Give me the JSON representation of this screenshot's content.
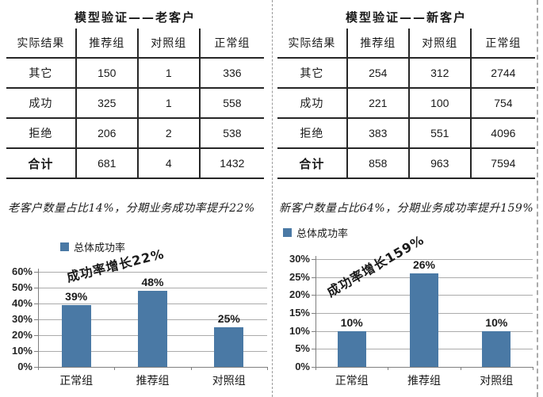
{
  "colors": {
    "accent": "#4a79a5",
    "gridline": "#ababab",
    "axis": "#7f7f7f",
    "divider": "#9a9a9a",
    "table_border": "#262626"
  },
  "left_panel": {
    "table": {
      "title": "模型验证——老客户",
      "columns": [
        "实际结果",
        "推荐组",
        "对照组",
        "正常组"
      ],
      "rows": [
        [
          "其它",
          "150",
          "1",
          "336"
        ],
        [
          "成功",
          "325",
          "1",
          "558"
        ],
        [
          "拒绝",
          "206",
          "2",
          "538"
        ],
        [
          "合计",
          "681",
          "4",
          "1432"
        ]
      ]
    },
    "caption": "老客户数量占比14%，分期业务成功率提升22%"
  },
  "right_panel": {
    "table": {
      "title": "模型验证——新客户",
      "columns": [
        "实际结果",
        "推荐组",
        "对照组",
        "正常组"
      ],
      "rows": [
        [
          "其它",
          "254",
          "312",
          "2744"
        ],
        [
          "成功",
          "221",
          "100",
          "754"
        ],
        [
          "拒绝",
          "383",
          "551",
          "4096"
        ],
        [
          "合计",
          "858",
          "963",
          "7594"
        ]
      ]
    },
    "caption": "新客户数量占比64%，分期业务成功率提升159%"
  },
  "chart_data": [
    {
      "type": "bar",
      "title": "",
      "legend": "总体成功率",
      "legend_position": "top-left",
      "categories": [
        "正常组",
        "推荐组",
        "对照组"
      ],
      "values": [
        39,
        48,
        25
      ],
      "value_labels": [
        "39%",
        "48%",
        "25%"
      ],
      "annotation": "成功率增长22%",
      "xlabel": "",
      "ylabel": "",
      "ylim": [
        0,
        60
      ],
      "ytick_step": 10,
      "ytick_labels": [
        "0%",
        "10%",
        "20%",
        "30%",
        "40%",
        "50%",
        "60%"
      ],
      "grid": true,
      "bar_color": "#4a79a5"
    },
    {
      "type": "bar",
      "title": "",
      "legend": "总体成功率",
      "legend_position": "top-left",
      "categories": [
        "正常组",
        "推荐组",
        "对照组"
      ],
      "values": [
        10,
        26,
        10
      ],
      "value_labels": [
        "10%",
        "26%",
        "10%"
      ],
      "annotation": "成功率增长159%",
      "xlabel": "",
      "ylabel": "",
      "ylim": [
        0,
        30
      ],
      "ytick_step": 5,
      "ytick_labels": [
        "0%",
        "5%",
        "10%",
        "15%",
        "20%",
        "25%",
        "30%"
      ],
      "grid": true,
      "bar_color": "#4a79a5"
    }
  ]
}
